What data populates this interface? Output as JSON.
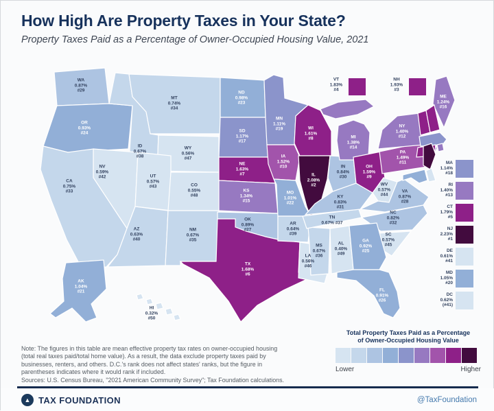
{
  "header": {
    "title": "How High Are Property Taxes in Your State?",
    "subtitle": "Property Taxes Paid as a Percentage of Owner-Occupied Housing Value, 2021"
  },
  "chart_data": {
    "type": "heatmap",
    "subtype": "us-choropleth-map",
    "title": "How High Are Property Taxes in Your State?",
    "subtitle": "Property Taxes Paid as a Percentage of Owner-Occupied Housing Value, 2021",
    "unit": "mean effective property tax rate on owner-occupied housing (%)",
    "legend": {
      "title": "Total Property Taxes Paid as a Percentage of Owner-Occupied Housing Value",
      "low_label": "Lower",
      "high_label": "Higher",
      "palette": [
        "#d6e4f1",
        "#c4d7eb",
        "#adc4e2",
        "#92afd7",
        "#8b94cb",
        "#9779c1",
        "#a254ab",
        "#8e2088",
        "#420b3e"
      ]
    },
    "states": [
      {
        "abbr": "NJ",
        "value": "2.23%",
        "rank": "#1",
        "level": 9
      },
      {
        "abbr": "IL",
        "value": "2.08%",
        "rank": "#2",
        "level": 9
      },
      {
        "abbr": "NH",
        "value": "1.93%",
        "rank": "#3",
        "level": 8
      },
      {
        "abbr": "VT",
        "value": "1.83%",
        "rank": "#4",
        "level": 8
      },
      {
        "abbr": "CT",
        "value": "1.79%",
        "rank": "#5",
        "level": 8
      },
      {
        "abbr": "TX",
        "value": "1.68%",
        "rank": "#6",
        "level": 8
      },
      {
        "abbr": "NE",
        "value": "1.63%",
        "rank": "#7",
        "level": 8
      },
      {
        "abbr": "WI",
        "value": "1.61%",
        "rank": "#8",
        "level": 8
      },
      {
        "abbr": "OH",
        "value": "1.59%",
        "rank": "#9",
        "level": 8
      },
      {
        "abbr": "IA",
        "value": "1.52%",
        "rank": "#10",
        "level": 7
      },
      {
        "abbr": "PA",
        "value": "1.49%",
        "rank": "#11",
        "level": 7
      },
      {
        "abbr": "NY",
        "value": "1.40%",
        "rank": "#12",
        "level": 6
      },
      {
        "abbr": "RI",
        "value": "1.40%",
        "rank": "#13",
        "level": 6
      },
      {
        "abbr": "MI",
        "value": "1.38%",
        "rank": "#14",
        "level": 6
      },
      {
        "abbr": "KS",
        "value": "1.34%",
        "rank": "#15",
        "level": 6
      },
      {
        "abbr": "ME",
        "value": "1.24%",
        "rank": "#16",
        "level": 6
      },
      {
        "abbr": "SD",
        "value": "1.17%",
        "rank": "#17",
        "level": 5
      },
      {
        "abbr": "MA",
        "value": "1.14%",
        "rank": "#18",
        "level": 5
      },
      {
        "abbr": "MN",
        "value": "1.11%",
        "rank": "#19",
        "level": 5
      },
      {
        "abbr": "MD",
        "value": "1.05%",
        "rank": "#20",
        "level": 4
      },
      {
        "abbr": "AK",
        "value": "1.04%",
        "rank": "#21",
        "level": 4
      },
      {
        "abbr": "MO",
        "value": "1.01%",
        "rank": "#22",
        "level": 4
      },
      {
        "abbr": "ND",
        "value": "0.98%",
        "rank": "#23",
        "level": 4
      },
      {
        "abbr": "OR",
        "value": "0.93%",
        "rank": "#24",
        "level": 4
      },
      {
        "abbr": "GA",
        "value": "0.92%",
        "rank": "#25",
        "level": 4
      },
      {
        "abbr": "FL",
        "value": "0.91%",
        "rank": "#26",
        "level": 4
      },
      {
        "abbr": "OK",
        "value": "0.89%",
        "rank": "#27",
        "level": 3
      },
      {
        "abbr": "VA",
        "value": "0.87%",
        "rank": "#28",
        "level": 3
      },
      {
        "abbr": "WA",
        "value": "0.87%",
        "rank": "#29",
        "level": 3
      },
      {
        "abbr": "IN",
        "value": "0.84%",
        "rank": "#30",
        "level": 3
      },
      {
        "abbr": "KY",
        "value": "0.83%",
        "rank": "#31",
        "level": 3
      },
      {
        "abbr": "NC",
        "value": "0.82%",
        "rank": "#32",
        "level": 3
      },
      {
        "abbr": "CA",
        "value": "0.75%",
        "rank": "#33",
        "level": 2
      },
      {
        "abbr": "MT",
        "value": "0.74%",
        "rank": "#34",
        "level": 2
      },
      {
        "abbr": "NM",
        "value": "0.67%",
        "rank": "#35",
        "level": 2
      },
      {
        "abbr": "MS",
        "value": "0.67%",
        "rank": "#36",
        "level": 2
      },
      {
        "abbr": "TN",
        "value": "0.67%",
        "rank": "#37",
        "level": 2
      },
      {
        "abbr": "ID",
        "value": "0.67%",
        "rank": "#38",
        "level": 2
      },
      {
        "abbr": "AR",
        "value": "0.64%",
        "rank": "#39",
        "level": 2
      },
      {
        "abbr": "AZ",
        "value": "0.63%",
        "rank": "#40",
        "level": 2
      },
      {
        "abbr": "DE",
        "value": "0.61%",
        "rank": "#41",
        "level": 1
      },
      {
        "abbr": "NV",
        "value": "0.59%",
        "rank": "#42",
        "level": 1
      },
      {
        "abbr": "UT",
        "value": "0.57%",
        "rank": "#43",
        "level": 1
      },
      {
        "abbr": "WV",
        "value": "0.57%",
        "rank": "#44",
        "level": 1
      },
      {
        "abbr": "SC",
        "value": "0.57%",
        "rank": "#45",
        "level": 1
      },
      {
        "abbr": "LA",
        "value": "0.56%",
        "rank": "#46",
        "level": 1
      },
      {
        "abbr": "WY",
        "value": "0.56%",
        "rank": "#47",
        "level": 1
      },
      {
        "abbr": "CO",
        "value": "0.55%",
        "rank": "#48",
        "level": 1
      },
      {
        "abbr": "AL",
        "value": "0.40%",
        "rank": "#49",
        "level": 1
      },
      {
        "abbr": "HI",
        "value": "0.32%",
        "rank": "#50",
        "level": 1
      },
      {
        "abbr": "DC",
        "value": "0.62%",
        "rank": "(#41)",
        "level": 1
      }
    ]
  },
  "legend": {
    "title_line1": "Total Property Taxes Paid as a Percentage",
    "title_line2": "of Owner-Occupied Housing Value",
    "lower": "Lower",
    "higher": "Higher"
  },
  "note": {
    "line1": "Note: The figures in this table are mean effective property tax rates on owner-occupied housing",
    "line2": "(total real taxes paid/total home value). As a result, the data exclude property taxes paid by",
    "line3": "businesses, renters, and others. D.C.'s rank does not affect states' ranks, but the figure in",
    "line4": "parentheses indicates where it would rank if included.",
    "sources": "Sources: U.S. Census Bureau, \"2021 American Community Survey\"; Tax Foundation calculations."
  },
  "footer": {
    "brand": "TAX FOUNDATION",
    "handle": "@TaxFoundation",
    "accent_navy": "#17325c",
    "accent_blue": "#4479ad"
  }
}
